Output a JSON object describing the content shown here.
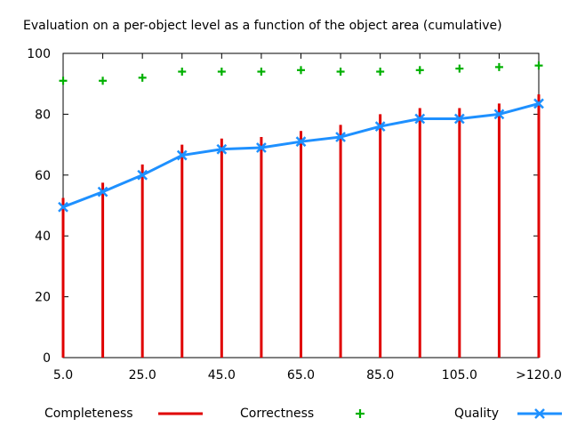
{
  "chart_data": {
    "type": "bar",
    "title": "Evaluation on a per-object level as a function of the object area (cumulative)",
    "xlabel": "",
    "ylabel": "",
    "ylim": [
      0,
      100
    ],
    "y_ticks": [
      "0",
      "20",
      "40",
      "60",
      "80",
      "100"
    ],
    "x_ticks": [
      "5.0",
      "25.0",
      "45.0",
      "65.0",
      "85.0",
      "105.0",
      ">120.0"
    ],
    "grid": false,
    "legend_position": "bottom",
    "categories": [
      "5.0",
      "15.0",
      "25.0",
      "35.0",
      "45.0",
      "55.0",
      "65.0",
      "75.0",
      "85.0",
      "95.0",
      "105.0",
      "115.0",
      ">120.0"
    ],
    "series": [
      {
        "name": "Completeness",
        "style": "impulses",
        "color": "#e00000",
        "values": [
          52.5,
          57.5,
          63.5,
          70.0,
          72.0,
          72.5,
          74.5,
          76.5,
          80.0,
          82.0,
          82.0,
          83.5,
          86.5
        ]
      },
      {
        "name": "Correctness",
        "style": "points",
        "color": "#00b000",
        "values": [
          91.0,
          91.0,
          92.0,
          94.0,
          94.0,
          94.0,
          94.5,
          94.0,
          94.0,
          94.5,
          95.0,
          95.5,
          96.0
        ]
      },
      {
        "name": "Quality",
        "style": "linespoints",
        "color": "#1e90ff",
        "values": [
          49.5,
          54.5,
          60.0,
          66.5,
          68.5,
          69.0,
          71.0,
          72.5,
          76.0,
          78.5,
          78.5,
          80.0,
          83.5
        ]
      }
    ]
  }
}
